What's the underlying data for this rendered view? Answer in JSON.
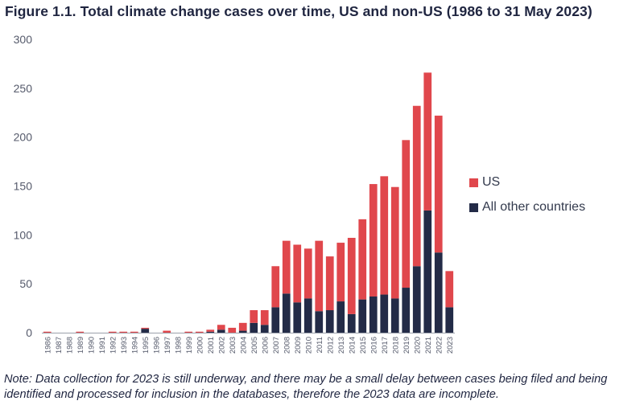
{
  "title": "Figure 1.1. Total climate change cases over time, US and non-US (1986 to 31 May 2023)",
  "note": "Note: Data collection for 2023 is still underway, and there may be a small delay between cases being filed and being identified and processed for inclusion in the databases, therefore the 2023 data are incomplete.",
  "colors": {
    "us": "#e0474c",
    "other": "#232b47",
    "axis": "#9aa0ab",
    "tick_text": "#555a6b"
  },
  "chart_data": {
    "type": "bar",
    "stacked": true,
    "title": "Figure 1.1. Total climate change cases over time, US and non-US (1986 to 31 May 2023)",
    "xlabel": "",
    "ylabel": "",
    "ylim": [
      0,
      300
    ],
    "yticks": [
      0,
      50,
      100,
      150,
      200,
      250,
      300
    ],
    "categories": [
      "1986",
      "1987",
      "1988",
      "1989",
      "1990",
      "1991",
      "1992",
      "1993",
      "1994",
      "1995",
      "1996",
      "1997",
      "1998",
      "1999",
      "2000",
      "2001",
      "2002",
      "2003",
      "2004",
      "2005",
      "2006",
      "2007",
      "2008",
      "2009",
      "2010",
      "2011",
      "2012",
      "2013",
      "2014",
      "2015",
      "2016",
      "2017",
      "2018",
      "2019",
      "2020",
      "2021",
      "2022",
      "2023"
    ],
    "series": [
      {
        "name": "All other countries",
        "color": "#232b47",
        "values": [
          0,
          0,
          0,
          0,
          0,
          0,
          0,
          0,
          0,
          4,
          0,
          0,
          0,
          0,
          0,
          1,
          3,
          0,
          2,
          10,
          8,
          26,
          40,
          31,
          35,
          22,
          23,
          32,
          19,
          34,
          37,
          39,
          35,
          46,
          68,
          125,
          82,
          26
        ]
      },
      {
        "name": "US",
        "color": "#e0474c",
        "values": [
          1,
          0,
          0,
          1,
          0,
          0,
          1,
          1,
          1,
          1,
          0,
          2,
          0,
          1,
          1,
          2,
          5,
          5,
          8,
          13,
          15,
          42,
          54,
          59,
          51,
          72,
          55,
          60,
          78,
          82,
          115,
          121,
          114,
          151,
          164,
          141,
          140,
          37
        ]
      }
    ],
    "legend": [
      "US",
      "All other countries"
    ],
    "legend_position": "right"
  }
}
